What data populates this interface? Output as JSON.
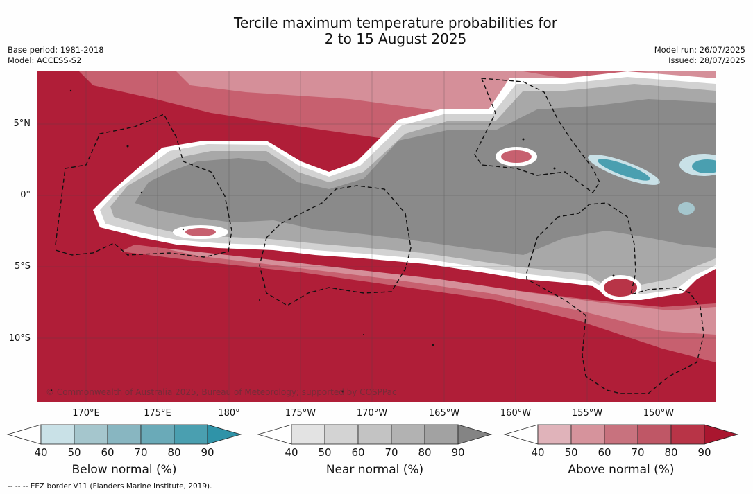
{
  "header": {
    "title_line1": "Tercile maximum temperature probabilities for",
    "title_line2": "2 to 15 August 2025",
    "base_period": "Base period: 1981-2018",
    "model": "Model: ACCESS-S2",
    "model_run": "Model run: 26/07/2025",
    "issued": "Issued: 28/07/2025"
  },
  "map": {
    "lat_labels": [
      "5°N",
      "0°",
      "5°S",
      "10°S"
    ],
    "lon_labels": [
      "170°E",
      "175°E",
      "180°",
      "175°W",
      "170°W",
      "165°W",
      "160°W",
      "155°W",
      "150°W"
    ],
    "copyright": "© Commonwealth of Australia 2025, Bureau of Meteorology; supported by COSPPac",
    "colors": {
      "above_base": "#b01e38",
      "near_base": "#8a8a8a",
      "below_base": "#4a9fb0"
    }
  },
  "colorbars": [
    {
      "title": "Below normal (%)",
      "ticks": [
        "40",
        "50",
        "60",
        "70",
        "80",
        "90"
      ],
      "colors": [
        "#ffffff",
        "#c9e1e7",
        "#a5c6cd",
        "#88b6c1",
        "#6aaab8",
        "#4a9fb0",
        "#2f93a8"
      ]
    },
    {
      "title": "Near normal (%)",
      "ticks": [
        "40",
        "50",
        "60",
        "70",
        "80",
        "90"
      ],
      "colors": [
        "#ffffff",
        "#e3e3e3",
        "#d3d3d3",
        "#c3c3c3",
        "#b2b2b2",
        "#a2a2a2",
        "#848484"
      ]
    },
    {
      "title": "Above normal (%)",
      "ticks": [
        "40",
        "50",
        "60",
        "70",
        "80",
        "90"
      ],
      "colors": [
        "#ffffff",
        "#e0b3ba",
        "#d6939c",
        "#c8727e",
        "#bf5766",
        "#b83447",
        "#a9162f"
      ]
    }
  ],
  "footer": {
    "eez_note": "--  --  -- EEZ border V11 (Flanders Marine Institute, 2019)."
  }
}
